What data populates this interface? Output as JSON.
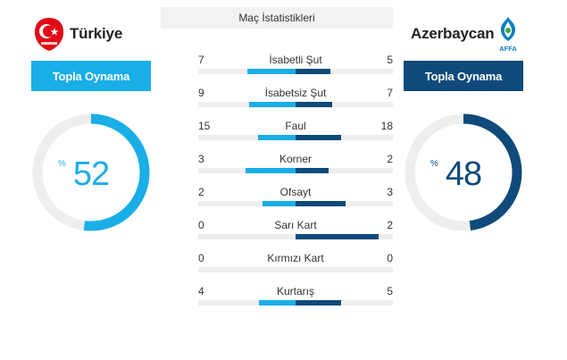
{
  "colors": {
    "home": "#1aaee7",
    "away": "#0f4a7a",
    "track": "#eeeeee"
  },
  "home": {
    "name": "Türkiye",
    "logo": "tff-crest-icon",
    "possession_label": "Topla Oynama",
    "possession": 52,
    "percent_sign": "%"
  },
  "away": {
    "name": "Azerbaycan",
    "logo": "affa-crest-icon",
    "logo_text": "AFFA",
    "possession_label": "Topla Oynama",
    "possession": 48,
    "percent_sign": "%"
  },
  "stats": {
    "title": "Maç İstatistikleri",
    "rows": [
      {
        "label": "İsabetli Şut",
        "home": 7,
        "away": 5
      },
      {
        "label": "İsabetsiz Şut",
        "home": 9,
        "away": 7
      },
      {
        "label": "Faul",
        "home": 15,
        "away": 18
      },
      {
        "label": "Korner",
        "home": 3,
        "away": 2
      },
      {
        "label": "Ofsayt",
        "home": 2,
        "away": 3
      },
      {
        "label": "Sarı Kart",
        "home": 0,
        "away": 2
      },
      {
        "label": "Kırmızı Kart",
        "home": 0,
        "away": 0
      },
      {
        "label": "Kurtarış",
        "home": 4,
        "away": 5
      }
    ]
  }
}
